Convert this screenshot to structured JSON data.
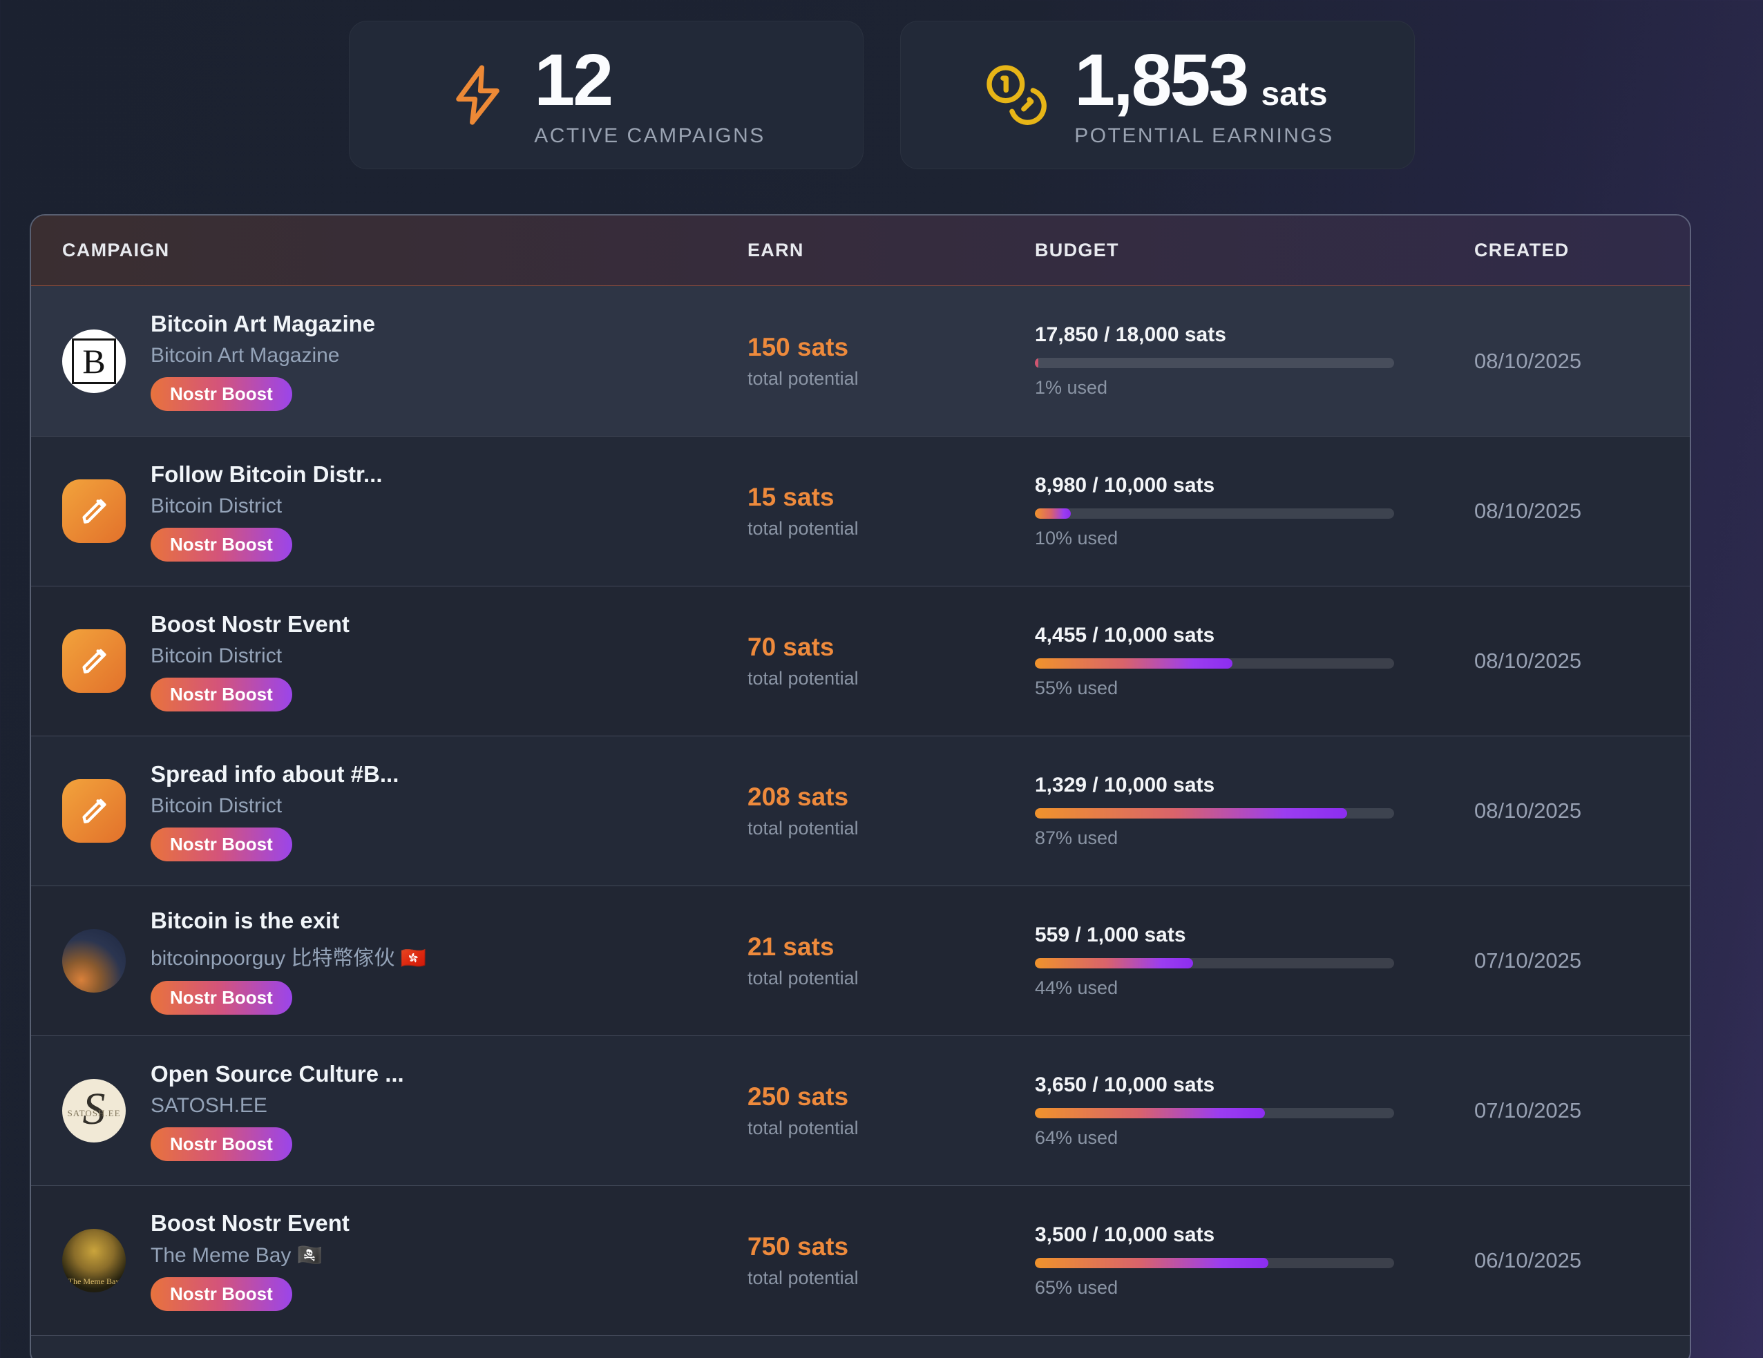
{
  "stats": [
    {
      "icon": "lightning-icon",
      "value": "12",
      "suffix": "",
      "label": "ACTIVE CAMPAIGNS"
    },
    {
      "icon": "coins-icon",
      "value": "1,853",
      "suffix": "sats",
      "label": "POTENTIAL EARNINGS"
    }
  ],
  "table": {
    "columns": [
      "CAMPAIGN",
      "EARN",
      "BUDGET",
      "CREATED"
    ],
    "rows": [
      {
        "title": "Bitcoin Art Magazine",
        "subtitle": "Bitcoin Art Magazine",
        "badge": "Nostr Boost",
        "avatar": {
          "kind": "bam",
          "letter": "B"
        },
        "earn": "150 sats",
        "earn_note": "total potential",
        "budget": "17,850 / 18,000 sats",
        "percent": 1,
        "used": "1% used",
        "created": "08/10/2025"
      },
      {
        "title": "Follow Bitcoin Distr...",
        "subtitle": "Bitcoin District",
        "badge": "Nostr Boost",
        "avatar": {
          "kind": "pencil"
        },
        "earn": "15 sats",
        "earn_note": "total potential",
        "budget": "8,980 / 10,000 sats",
        "percent": 10,
        "used": "10% used",
        "created": "08/10/2025"
      },
      {
        "title": "Boost Nostr Event",
        "subtitle": "Bitcoin District",
        "badge": "Nostr Boost",
        "avatar": {
          "kind": "pencil"
        },
        "earn": "70 sats",
        "earn_note": "total potential",
        "budget": "4,455 / 10,000 sats",
        "percent": 55,
        "used": "55% used",
        "created": "08/10/2025"
      },
      {
        "title": "Spread info about #B...",
        "subtitle": "Bitcoin District",
        "badge": "Nostr Boost",
        "avatar": {
          "kind": "pencil"
        },
        "earn": "208 sats",
        "earn_note": "total potential",
        "budget": "1,329 / 10,000 sats",
        "percent": 87,
        "used": "87% used",
        "created": "08/10/2025"
      },
      {
        "title": "Bitcoin is the exit",
        "subtitle": "bitcoinpoorguy 比特幣傢伙 🇭🇰",
        "badge": "Nostr Boost",
        "avatar": {
          "kind": "photo"
        },
        "earn": "21 sats",
        "earn_note": "total potential",
        "budget": "559 / 1,000 sats",
        "percent": 44,
        "used": "44% used",
        "created": "07/10/2025"
      },
      {
        "title": "Open Source Culture ...",
        "subtitle": "SATOSH.EE",
        "badge": "Nostr Boost",
        "avatar": {
          "kind": "satoshee",
          "letter": "S",
          "text": "SATOSH.EE"
        },
        "earn": "250 sats",
        "earn_note": "total potential",
        "budget": "3,650 / 10,000 sats",
        "percent": 64,
        "used": "64% used",
        "created": "07/10/2025"
      },
      {
        "title": "Boost Nostr Event",
        "subtitle": "The Meme Bay 🏴‍☠️",
        "badge": "Nostr Boost",
        "avatar": {
          "kind": "memebay",
          "text": "The Meme Bay"
        },
        "earn": "750 sats",
        "earn_note": "total potential",
        "budget": "3,500 / 10,000 sats",
        "percent": 65,
        "used": "65% used",
        "created": "06/10/2025"
      }
    ]
  },
  "colors": {
    "accent_orange": "#ee8a3c",
    "lightning_orange": "#ed8936",
    "coin_yellow": "#e7b517",
    "badge_gradient": [
      "#e8733d",
      "#d4547a",
      "#9b45ea"
    ],
    "progress_gradient": [
      "#f0932c",
      "#d9636b",
      "#8c2df0"
    ],
    "panel_header_gradient": [
      "#3a2e31",
      "#302b49"
    ]
  }
}
